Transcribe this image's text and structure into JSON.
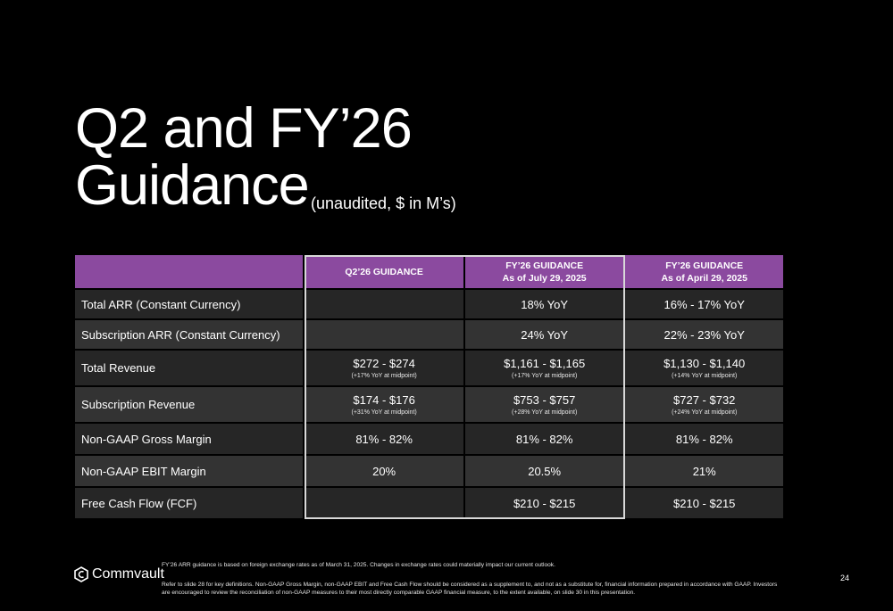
{
  "slide": {
    "title_line1": "Q2 and FY’26",
    "title_line2": "Guidance",
    "subtitle": "(unaudited, $ in M’s)",
    "page_number": "24"
  },
  "table": {
    "headers": [
      {
        "line1": "",
        "line2": ""
      },
      {
        "line1": "Q2’26 GUIDANCE",
        "line2": ""
      },
      {
        "line1": "FY’26 GUIDANCE",
        "line2": "As of July 29, 2025"
      },
      {
        "line1": "FY’26 GUIDANCE",
        "line2": "As of April 29, 2025"
      }
    ],
    "rows": [
      {
        "label": "Total ARR (Constant Currency)",
        "q2": {
          "main": "",
          "sub": ""
        },
        "fy_jul": {
          "main": "18% YoY",
          "sub": ""
        },
        "fy_apr": {
          "main": "16% - 17% YoY",
          "sub": ""
        }
      },
      {
        "label": "Subscription ARR (Constant Currency)",
        "q2": {
          "main": "",
          "sub": ""
        },
        "fy_jul": {
          "main": "24% YoY",
          "sub": ""
        },
        "fy_apr": {
          "main": "22% - 23% YoY",
          "sub": ""
        }
      },
      {
        "label": "Total Revenue",
        "q2": {
          "main": "$272 - $274",
          "sub": "(+17% YoY at midpoint)"
        },
        "fy_jul": {
          "main": "$1,161 - $1,165",
          "sub": "(+17% YoY at midpoint)"
        },
        "fy_apr": {
          "main": "$1,130 - $1,140",
          "sub": "(+14% YoY at midpoint)"
        }
      },
      {
        "label": "Subscription Revenue",
        "q2": {
          "main": "$174 - $176",
          "sub": "(+31% YoY at midpoint)"
        },
        "fy_jul": {
          "main": "$753 - $757",
          "sub": "(+28% YoY at midpoint)"
        },
        "fy_apr": {
          "main": "$727 - $732",
          "sub": "(+24% YoY at midpoint)"
        }
      },
      {
        "label": "Non-GAAP Gross Margin",
        "q2": {
          "main": "81% - 82%",
          "sub": ""
        },
        "fy_jul": {
          "main": "81% - 82%",
          "sub": ""
        },
        "fy_apr": {
          "main": "81% - 82%",
          "sub": ""
        }
      },
      {
        "label": "Non-GAAP EBIT Margin",
        "q2": {
          "main": "20%",
          "sub": ""
        },
        "fy_jul": {
          "main": "20.5%",
          "sub": ""
        },
        "fy_apr": {
          "main": "21%",
          "sub": ""
        }
      },
      {
        "label": "Free Cash Flow (FCF)",
        "q2": {
          "main": "",
          "sub": ""
        },
        "fy_jul": {
          "main": "$210 - $215",
          "sub": ""
        },
        "fy_apr": {
          "main": "$210 - $215",
          "sub": ""
        }
      }
    ]
  },
  "footer": {
    "logo_text": "Commvault",
    "footnote1": "FY’26 ARR guidance is based on foreign exchange rates as of March 31, 2025. Changes in exchange rates could materially impact our current outlook.",
    "footnote2": "Refer to slide 28 for key definitions. Non-GAAP Gross Margin, non-GAAP EBIT and Free Cash Flow should be considered as a supplement to, and not as a substitute for, financial information prepared in accordance with GAAP. Investors are encouraged to review the reconciliation of non-GAAP measures to their most directly comparable GAAP financial measure, to the extent available, on slide 30 in this presentation."
  },
  "colors": {
    "background": "#000000",
    "header_purple": "#8b4a9f",
    "row_dark": "#262626",
    "row_light": "#333333",
    "highlight_border": "#d9d9d9"
  },
  "icons": {
    "logo": "commvault-logo-icon"
  }
}
